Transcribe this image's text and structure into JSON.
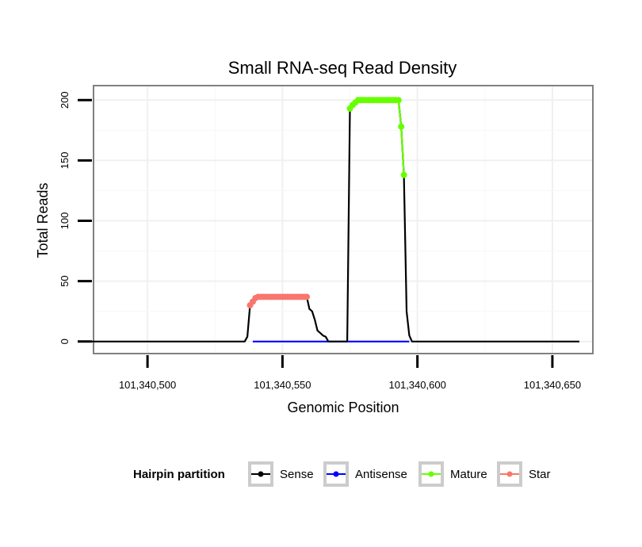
{
  "chart_data": {
    "type": "line",
    "title": "Small RNA-seq Read Density",
    "xlabel": "Genomic Position",
    "ylabel": "Total Reads",
    "xlim": [
      101340480,
      101340665
    ],
    "ylim": [
      -10,
      212
    ],
    "x_ticks": [
      101340500,
      101340550,
      101340600,
      101340650
    ],
    "x_tick_labels": [
      "101,340,500",
      "101,340,550",
      "101,340,600",
      "101,340,650"
    ],
    "y_ticks": [
      0,
      50,
      100,
      150,
      200
    ],
    "y_tick_labels": [
      "0",
      "50",
      "100",
      "150",
      "200"
    ],
    "grid": true,
    "legend_position": "bottom",
    "legend_title": "Hairpin partition",
    "series": [
      {
        "name": "Sense",
        "color": "#000000",
        "marker": false,
        "x": [
          101340476,
          101340536,
          101340537,
          101340538,
          101340539,
          101340540,
          101340541,
          101340559,
          101340560,
          101340561,
          101340562,
          101340563,
          101340564,
          101340565,
          101340566,
          101340567,
          101340568,
          101340569,
          101340574,
          101340575,
          101340576,
          101340577,
          101340578,
          101340593,
          101340594,
          101340595,
          101340596,
          101340597,
          101340598,
          101340660
        ],
        "y": [
          0,
          0,
          4,
          30,
          33,
          36,
          37,
          37,
          27,
          25,
          18,
          9,
          7,
          5,
          4,
          0,
          0,
          0,
          0,
          193,
          196,
          198,
          200,
          200,
          178,
          138,
          25,
          5,
          0,
          0
        ]
      },
      {
        "name": "Antisense",
        "color": "#0000ff",
        "marker": false,
        "x": [
          101340539,
          101340597
        ],
        "y": [
          0,
          0
        ]
      },
      {
        "name": "Mature",
        "color": "#66ff00",
        "marker": true,
        "x": [
          101340575,
          101340576,
          101340577,
          101340578,
          101340579,
          101340580,
          101340581,
          101340582,
          101340583,
          101340584,
          101340585,
          101340586,
          101340587,
          101340588,
          101340589,
          101340590,
          101340591,
          101340592,
          101340593,
          101340594,
          101340595
        ],
        "y": [
          193,
          196,
          198,
          200,
          200,
          200,
          200,
          200,
          200,
          200,
          200,
          200,
          200,
          200,
          200,
          200,
          200,
          200,
          200,
          178,
          138
        ]
      },
      {
        "name": "Star",
        "color": "#f8766d",
        "marker": true,
        "x": [
          101340538,
          101340539,
          101340540,
          101340541,
          101340542,
          101340543,
          101340544,
          101340545,
          101340546,
          101340547,
          101340548,
          101340549,
          101340550,
          101340551,
          101340552,
          101340553,
          101340554,
          101340555,
          101340556,
          101340557,
          101340558,
          101340559
        ],
        "y": [
          30,
          33,
          36,
          37,
          37,
          37,
          37,
          37,
          37,
          37,
          37,
          37,
          37,
          37,
          37,
          37,
          37,
          37,
          37,
          37,
          37,
          37
        ]
      }
    ]
  }
}
